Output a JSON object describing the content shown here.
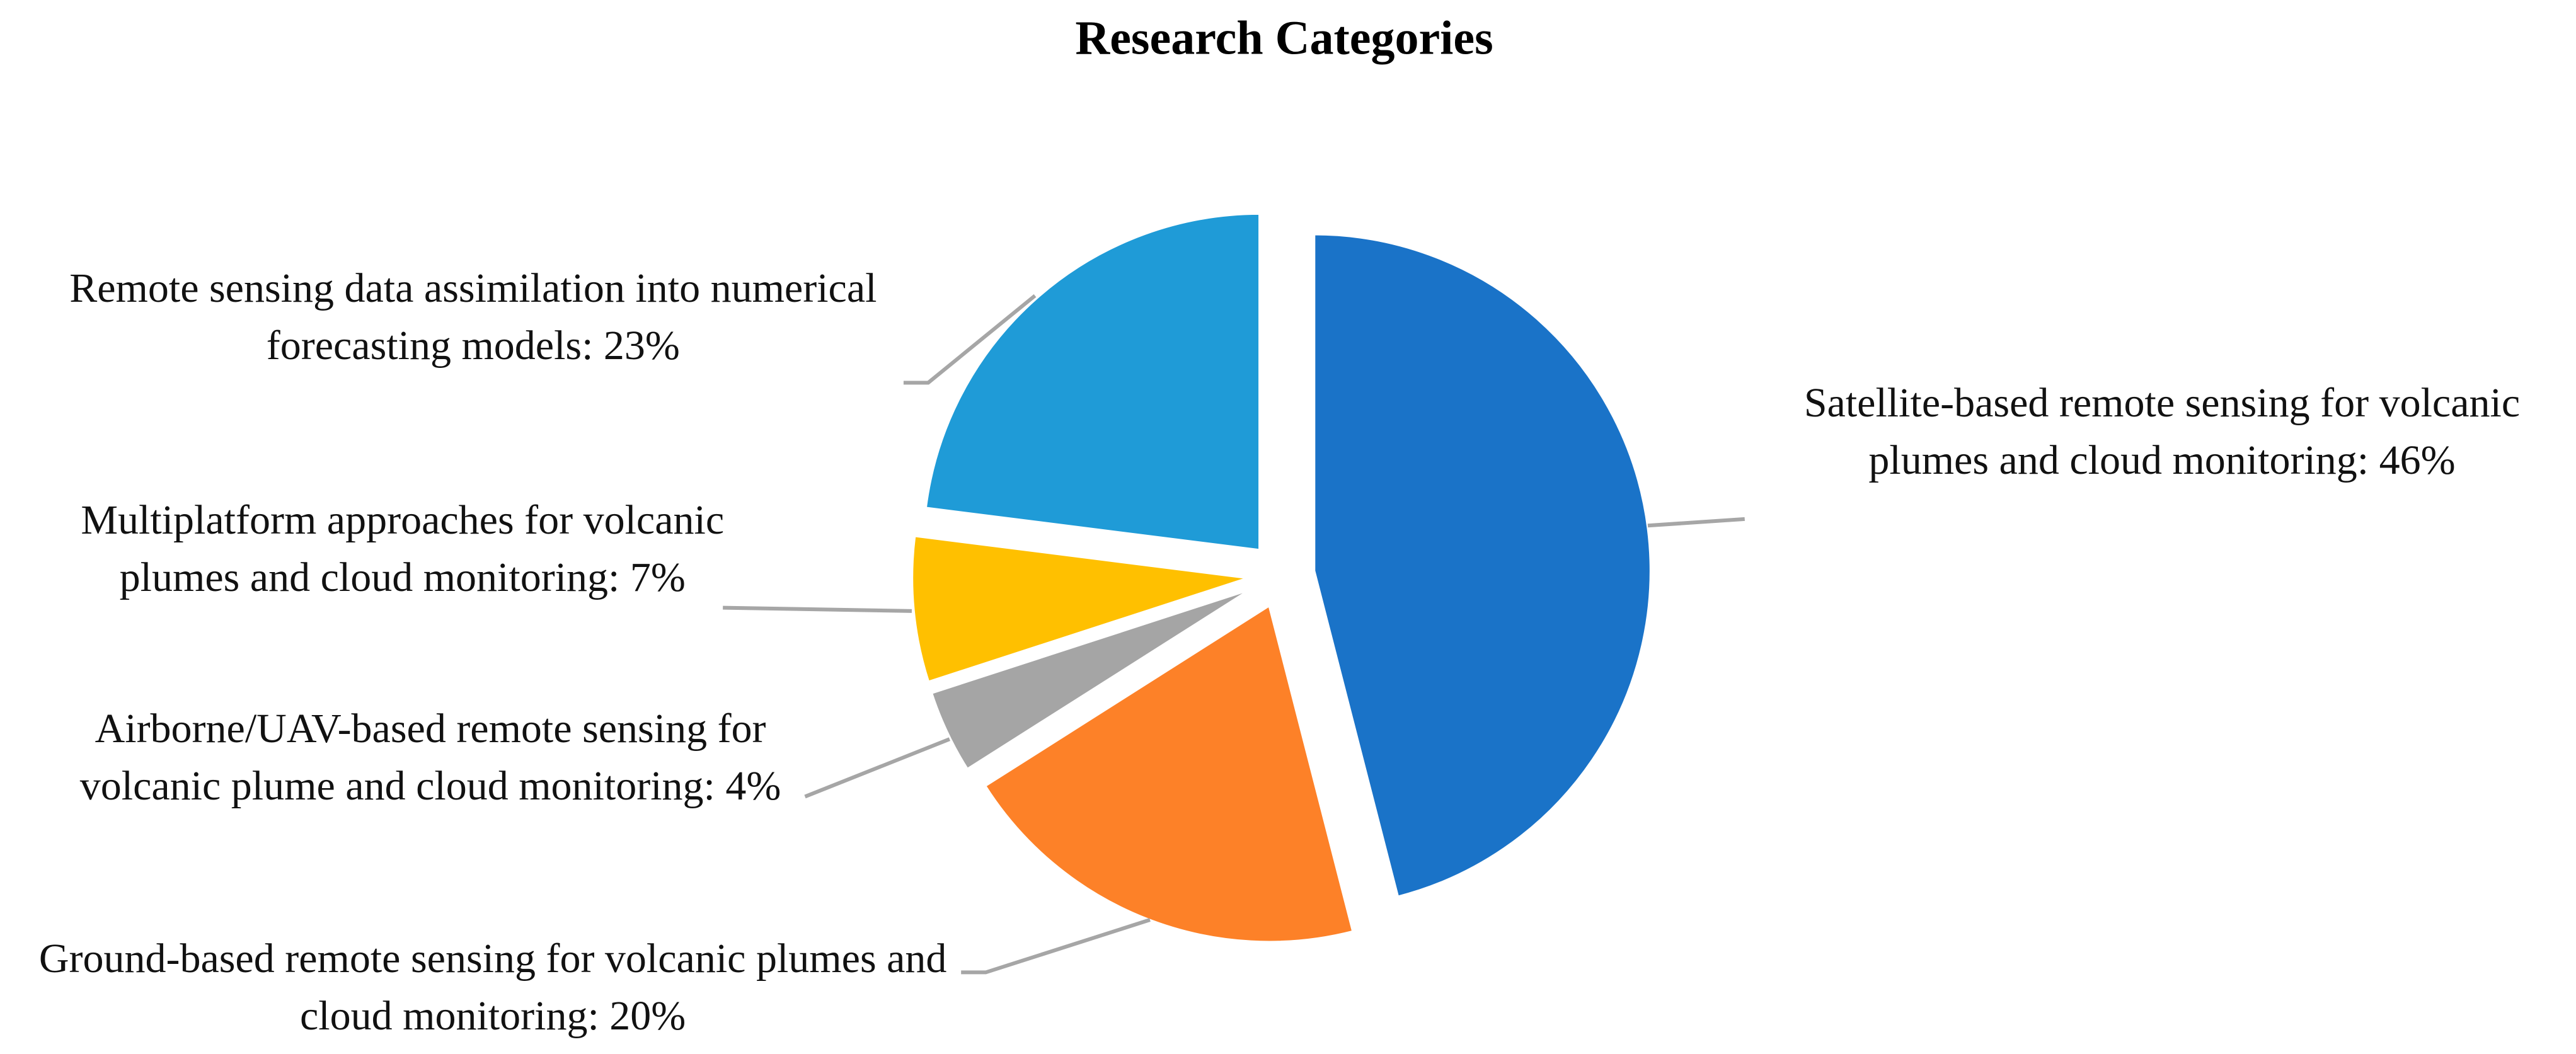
{
  "chart_data": {
    "type": "pie",
    "title": "Research Categories",
    "labels": [
      "Satellite-based remote sensing for volcanic plumes and cloud monitoring: 46%",
      "Ground-based remote sensing for volcanic plumes and cloud monitoring: 20%",
      "Airborne/UAV-based remote sensing for volcanic plume and cloud monitoring: 4%",
      "Multiplatform approaches for volcanic plumes and cloud monitoring: 7%",
      "Remote sensing data assimilation into numerical forecasting models: 23%"
    ],
    "values": [
      46,
      20,
      4,
      7,
      23
    ],
    "colors": [
      "#1a73c8",
      "#fd8128",
      "#a5a5a5",
      "#ffc000",
      "#1f9bd7"
    ]
  }
}
